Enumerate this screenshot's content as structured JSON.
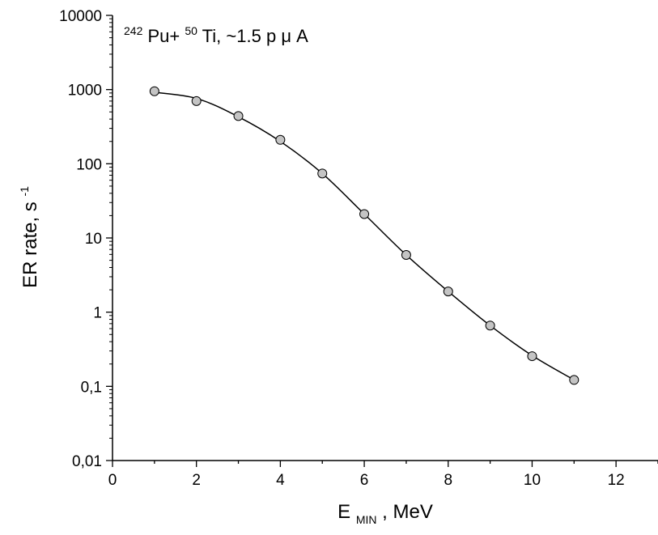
{
  "chart_data": {
    "type": "scatter",
    "x": [
      1,
      2,
      3,
      4,
      5,
      6,
      7,
      8,
      9,
      10,
      11
    ],
    "y": [
      950,
      700,
      440,
      210,
      74,
      21,
      5.9,
      1.9,
      0.66,
      0.255,
      0.122
    ],
    "fit_curve": {
      "x": [
        1,
        2,
        3,
        4,
        5,
        6,
        7,
        8,
        9,
        10,
        11
      ],
      "y": [
        920,
        760,
        430,
        200,
        74,
        21,
        5.9,
        1.9,
        0.66,
        0.26,
        0.122
      ]
    },
    "xlim": [
      0,
      13
    ],
    "ylim": [
      0.01,
      10000
    ],
    "y_scale": "log",
    "x_ticks": [
      "0",
      "2",
      "4",
      "6",
      "8",
      "10",
      "12"
    ],
    "y_ticks": [
      "0,01",
      "0,1",
      "1",
      "10",
      "100",
      "1000",
      "10000"
    ],
    "xlabel": {
      "main": "E",
      "sub": "MIN",
      "rest": ", MeV"
    },
    "ylabel": {
      "main": "ER rate, s",
      "sup": "-1"
    },
    "annotation": {
      "sup1": "242",
      "part1": "Pu+",
      "sup2": "50",
      "part2": "Ti,  ~1.5 p",
      "mu": "μ",
      "part3": "A"
    },
    "grid": false,
    "marker_color": "#c4c4c4",
    "line_color": "#000000"
  }
}
